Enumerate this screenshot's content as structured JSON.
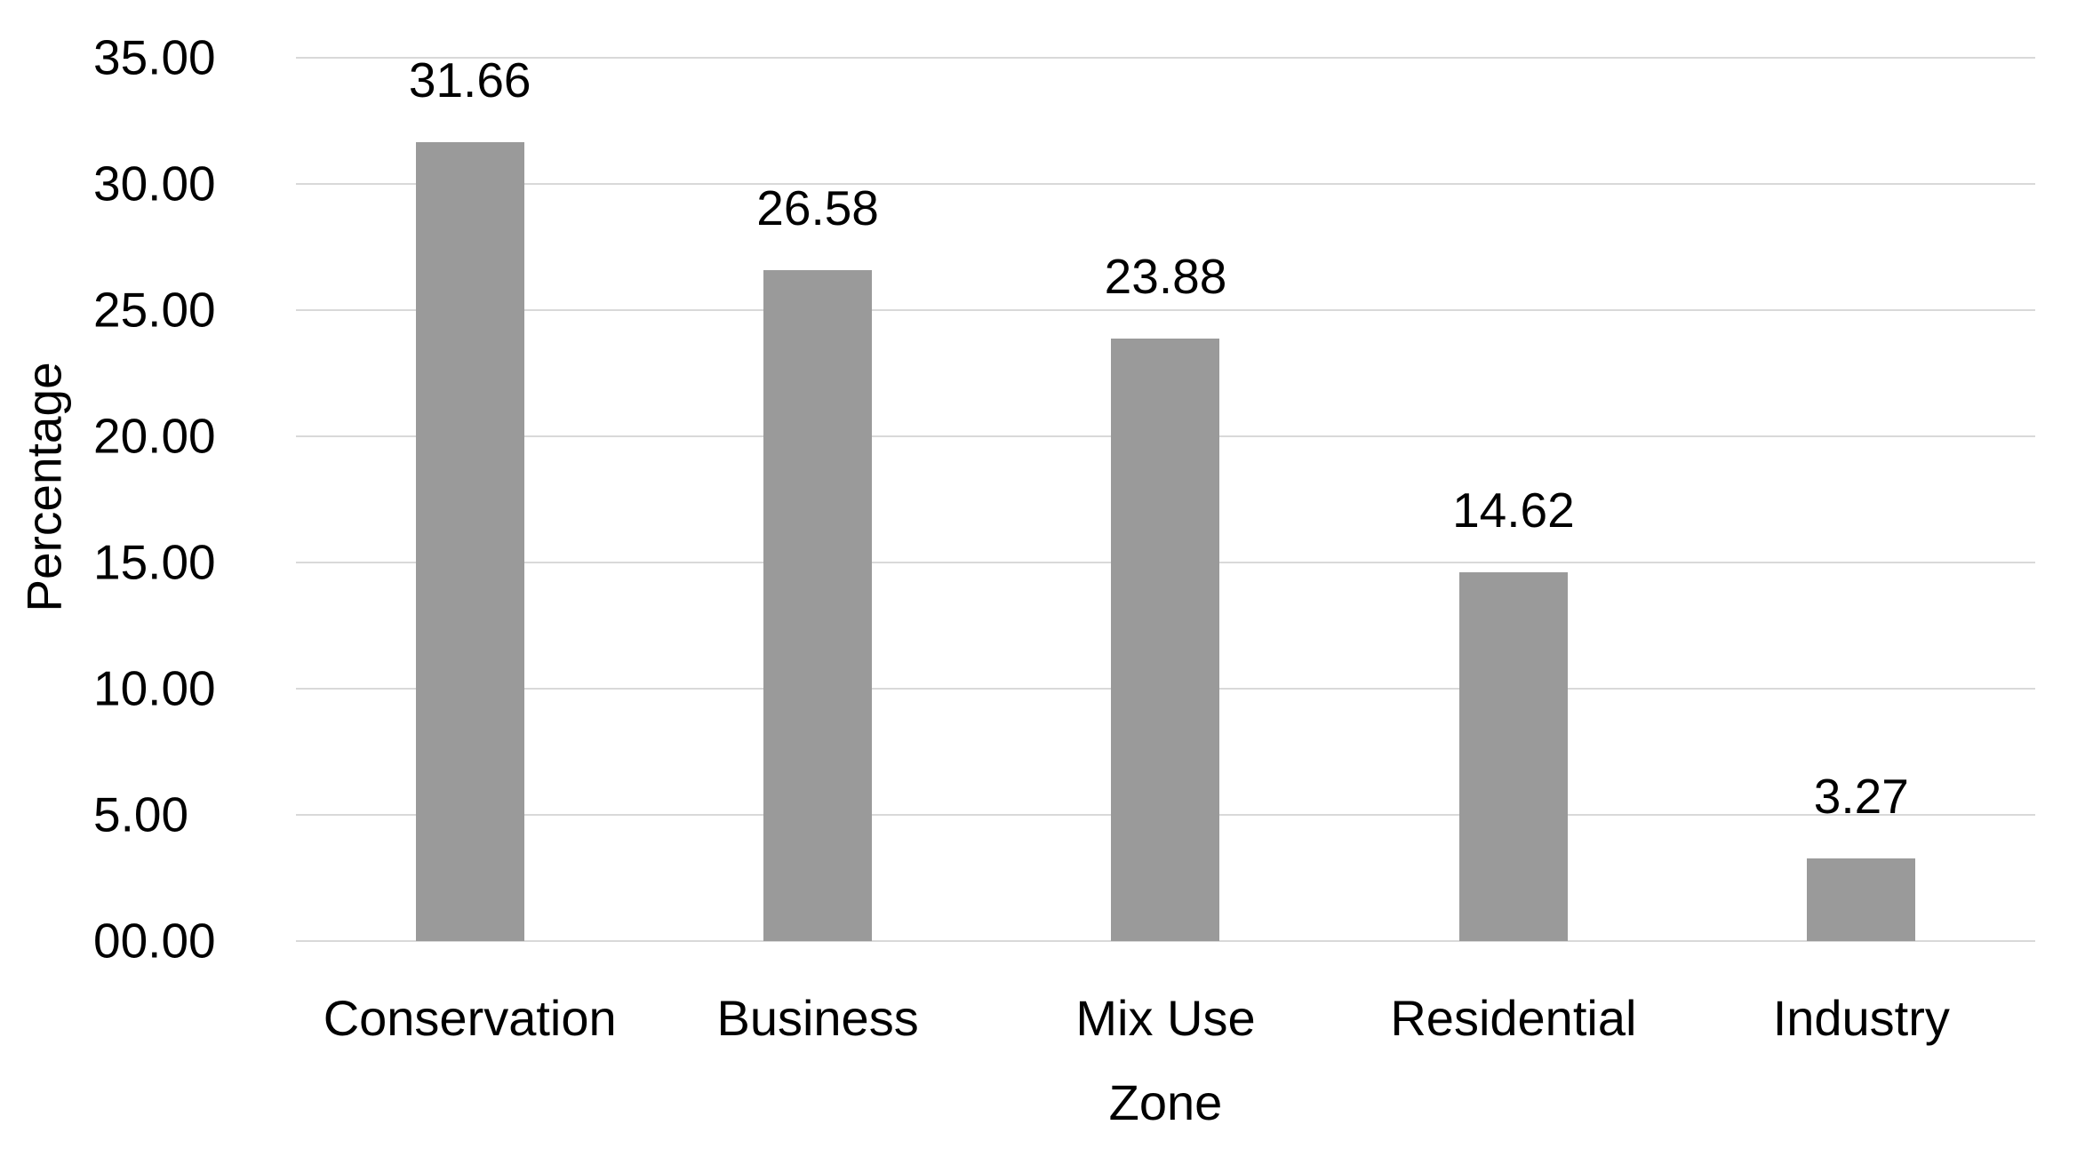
{
  "chart_data": {
    "type": "bar",
    "title": "",
    "xlabel": "Zone",
    "ylabel": "Percentage",
    "categories": [
      "Conservation",
      "Business",
      "Mix Use",
      "Residential",
      "Industry"
    ],
    "values": [
      31.66,
      26.58,
      23.88,
      14.62,
      3.27
    ],
    "data_labels": [
      "31.66",
      "26.58",
      "23.88",
      "14.62",
      "3.27"
    ],
    "ylim": [
      0,
      35
    ],
    "ytick_interval": 5,
    "ytick_labels": [
      "35.00",
      "30.00",
      "25.00",
      "20.00",
      "15.00",
      "10.00",
      "5.00",
      "00.00"
    ],
    "grid": true,
    "legend_position": "none",
    "bar_color": "#9a9a9a",
    "gridline_color": "#d9d9d9",
    "text_color": "#000000"
  }
}
